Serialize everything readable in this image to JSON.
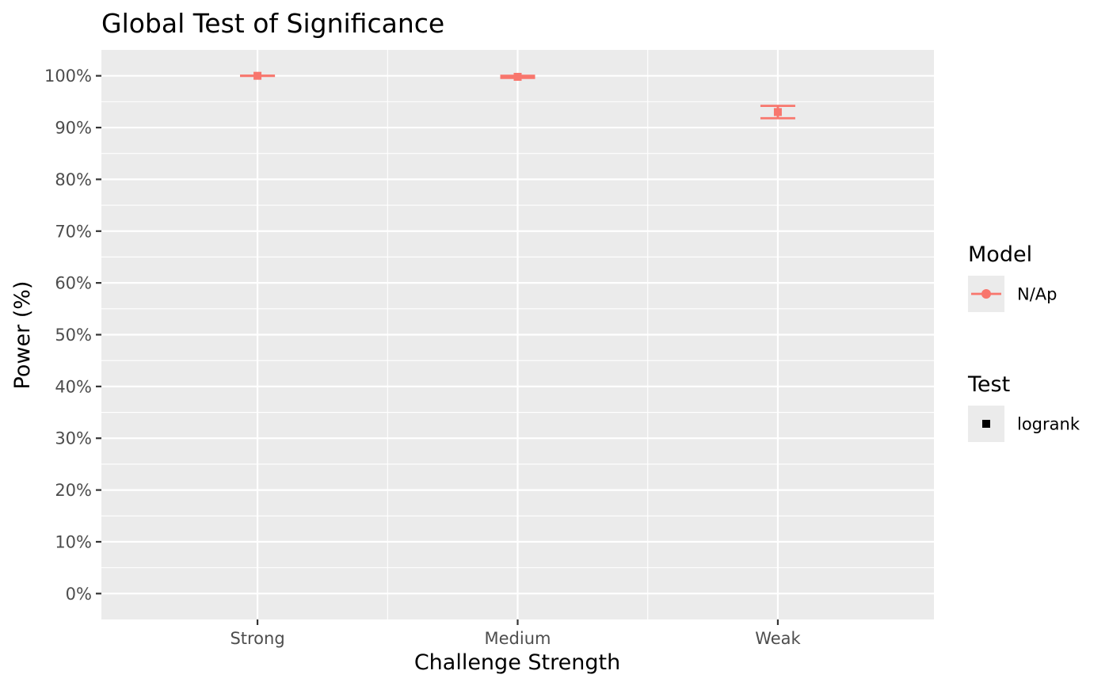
{
  "chart_data": {
    "type": "scatter",
    "title": "Global Test of Significance",
    "xlabel": "Challenge Strength",
    "ylabel": "Power (%)",
    "categories": [
      "Strong",
      "Medium",
      "Weak"
    ],
    "ylim": [
      -5,
      105
    ],
    "yticks": [
      0,
      10,
      20,
      30,
      40,
      50,
      60,
      70,
      80,
      90,
      100
    ],
    "ytick_labels": [
      "0%",
      "10%",
      "20%",
      "30%",
      "40%",
      "50%",
      "60%",
      "70%",
      "80%",
      "90%",
      "100%"
    ],
    "grid": true,
    "series": [
      {
        "name": "N/Ap",
        "test": "logrank",
        "color": "#F8766D",
        "values": [
          100.0,
          99.8,
          93.0
        ],
        "lower": [
          100.0,
          99.6,
          91.8
        ],
        "upper": [
          100.0,
          100.0,
          94.2
        ]
      }
    ],
    "legend": {
      "position": "right",
      "groups": [
        {
          "title": "Model",
          "entries": [
            {
              "label": "N/Ap",
              "color": "#F8766D",
              "key": "line-point"
            }
          ]
        },
        {
          "title": "Test",
          "entries": [
            {
              "label": "logrank",
              "color": "#000000",
              "key": "square"
            }
          ]
        }
      ]
    }
  }
}
